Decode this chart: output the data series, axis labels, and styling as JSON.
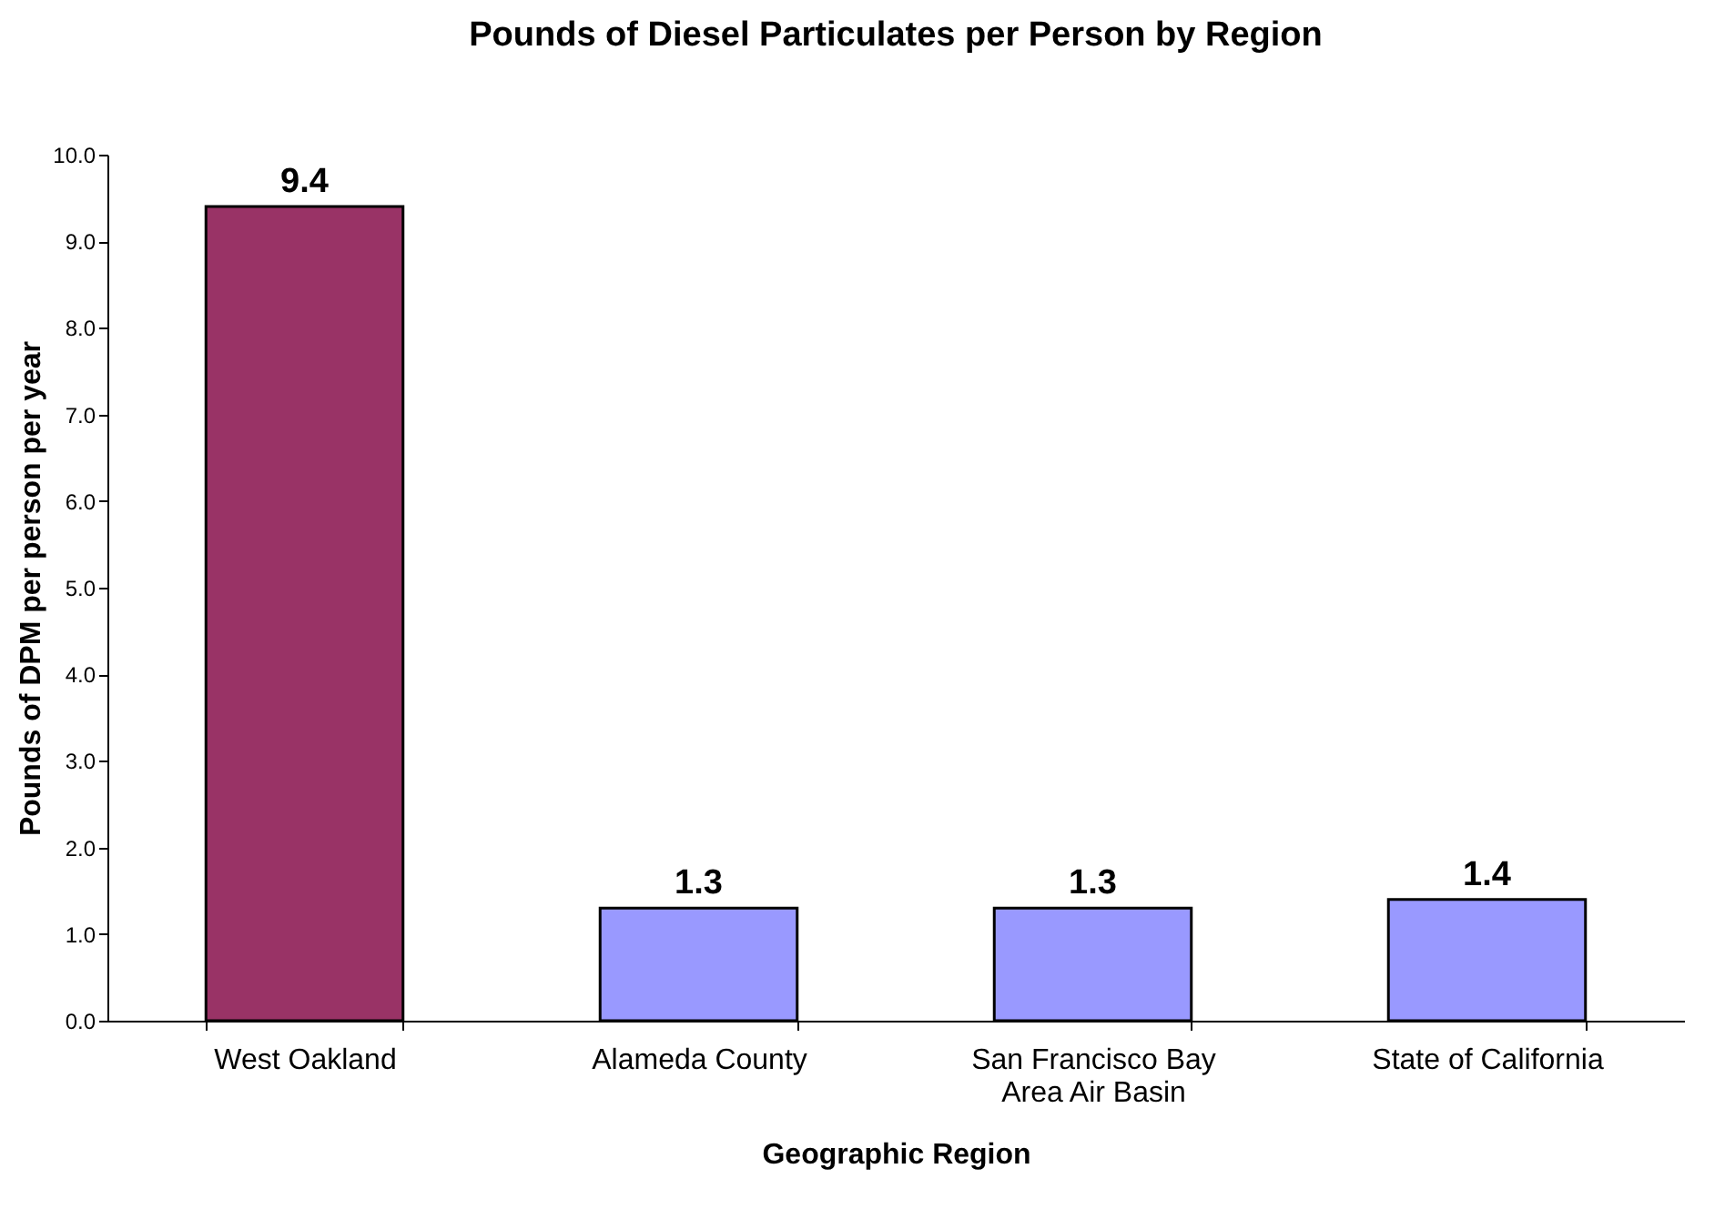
{
  "chart_data": {
    "type": "bar",
    "title": "Pounds of Diesel Particulates per Person by Region",
    "xlabel": "Geographic Region",
    "ylabel": "Pounds of DPM per person per year",
    "categories": [
      "West Oakland",
      "Alameda County",
      "San Francisco Bay Area Air Basin",
      "State of California"
    ],
    "values": [
      9.4,
      1.3,
      1.3,
      1.4
    ],
    "colors": [
      "#993366",
      "#9999ff",
      "#9999ff",
      "#9999ff"
    ],
    "ylim": [
      0,
      10
    ],
    "yticks": [
      {
        "value": 0,
        "label": "0.0"
      },
      {
        "value": 1,
        "label": "1.0"
      },
      {
        "value": 2,
        "label": "2.0"
      },
      {
        "value": 3,
        "label": "3.0"
      },
      {
        "value": 4,
        "label": "4.0"
      },
      {
        "value": 5,
        "label": "5.0"
      },
      {
        "value": 6,
        "label": "6.0"
      },
      {
        "value": 7,
        "label": "7.0"
      },
      {
        "value": 8,
        "label": "8.0"
      },
      {
        "value": 9,
        "label": "9.0"
      },
      {
        "value": 10,
        "label": "10.0"
      }
    ],
    "data_labels": true,
    "grid": false
  }
}
